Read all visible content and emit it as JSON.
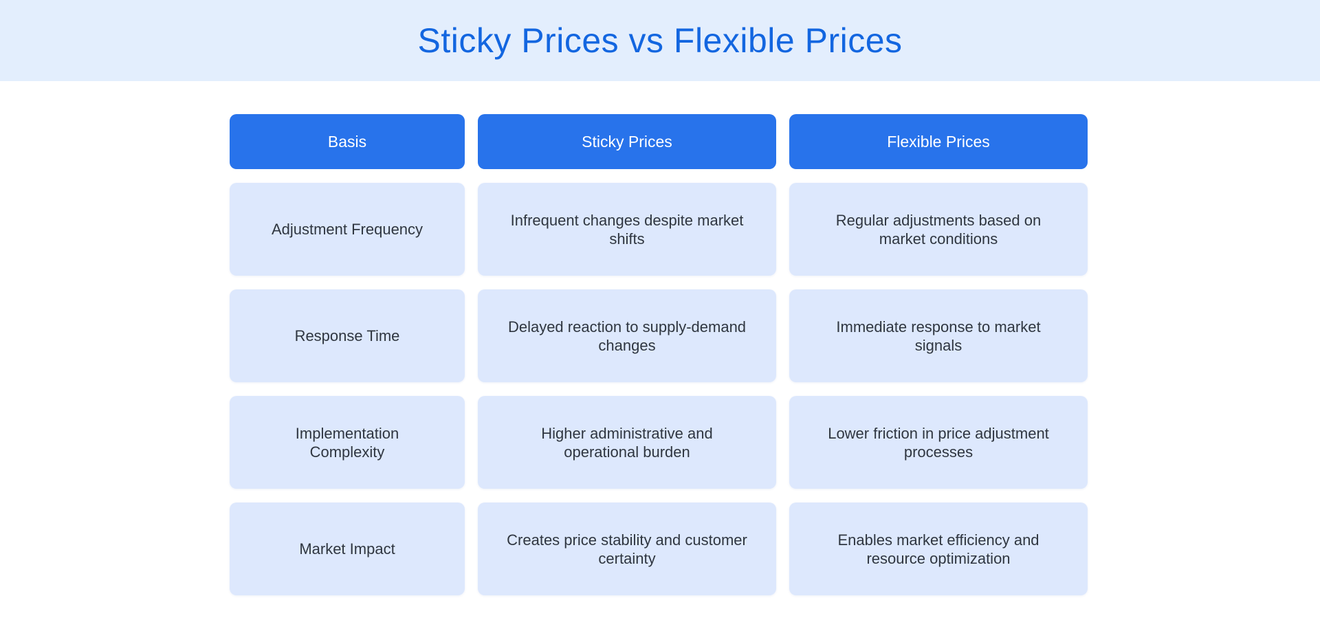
{
  "title": "Sticky Prices vs Flexible Prices",
  "headers": [
    "Basis",
    "Sticky Prices",
    "Flexible Prices"
  ],
  "rows": [
    [
      "Adjustment Frequency",
      "Infrequent changes despite market shifts",
      "Regular adjustments based on market conditions"
    ],
    [
      "Response Time",
      "Delayed reaction to supply-demand changes",
      "Immediate response to market signals"
    ],
    [
      "Implementation Complexity",
      "Higher administrative and operational burden",
      "Lower friction in price adjustment processes"
    ],
    [
      "Market Impact",
      "Creates price stability and customer certainty",
      "Enables market efficiency and resource optimization"
    ]
  ],
  "colors": {
    "header_band": "#e3eefd",
    "title_text": "#1366e0",
    "column_header": "#2873eb",
    "cell_background": "#dde8fd",
    "cell_text": "#2f3640"
  }
}
